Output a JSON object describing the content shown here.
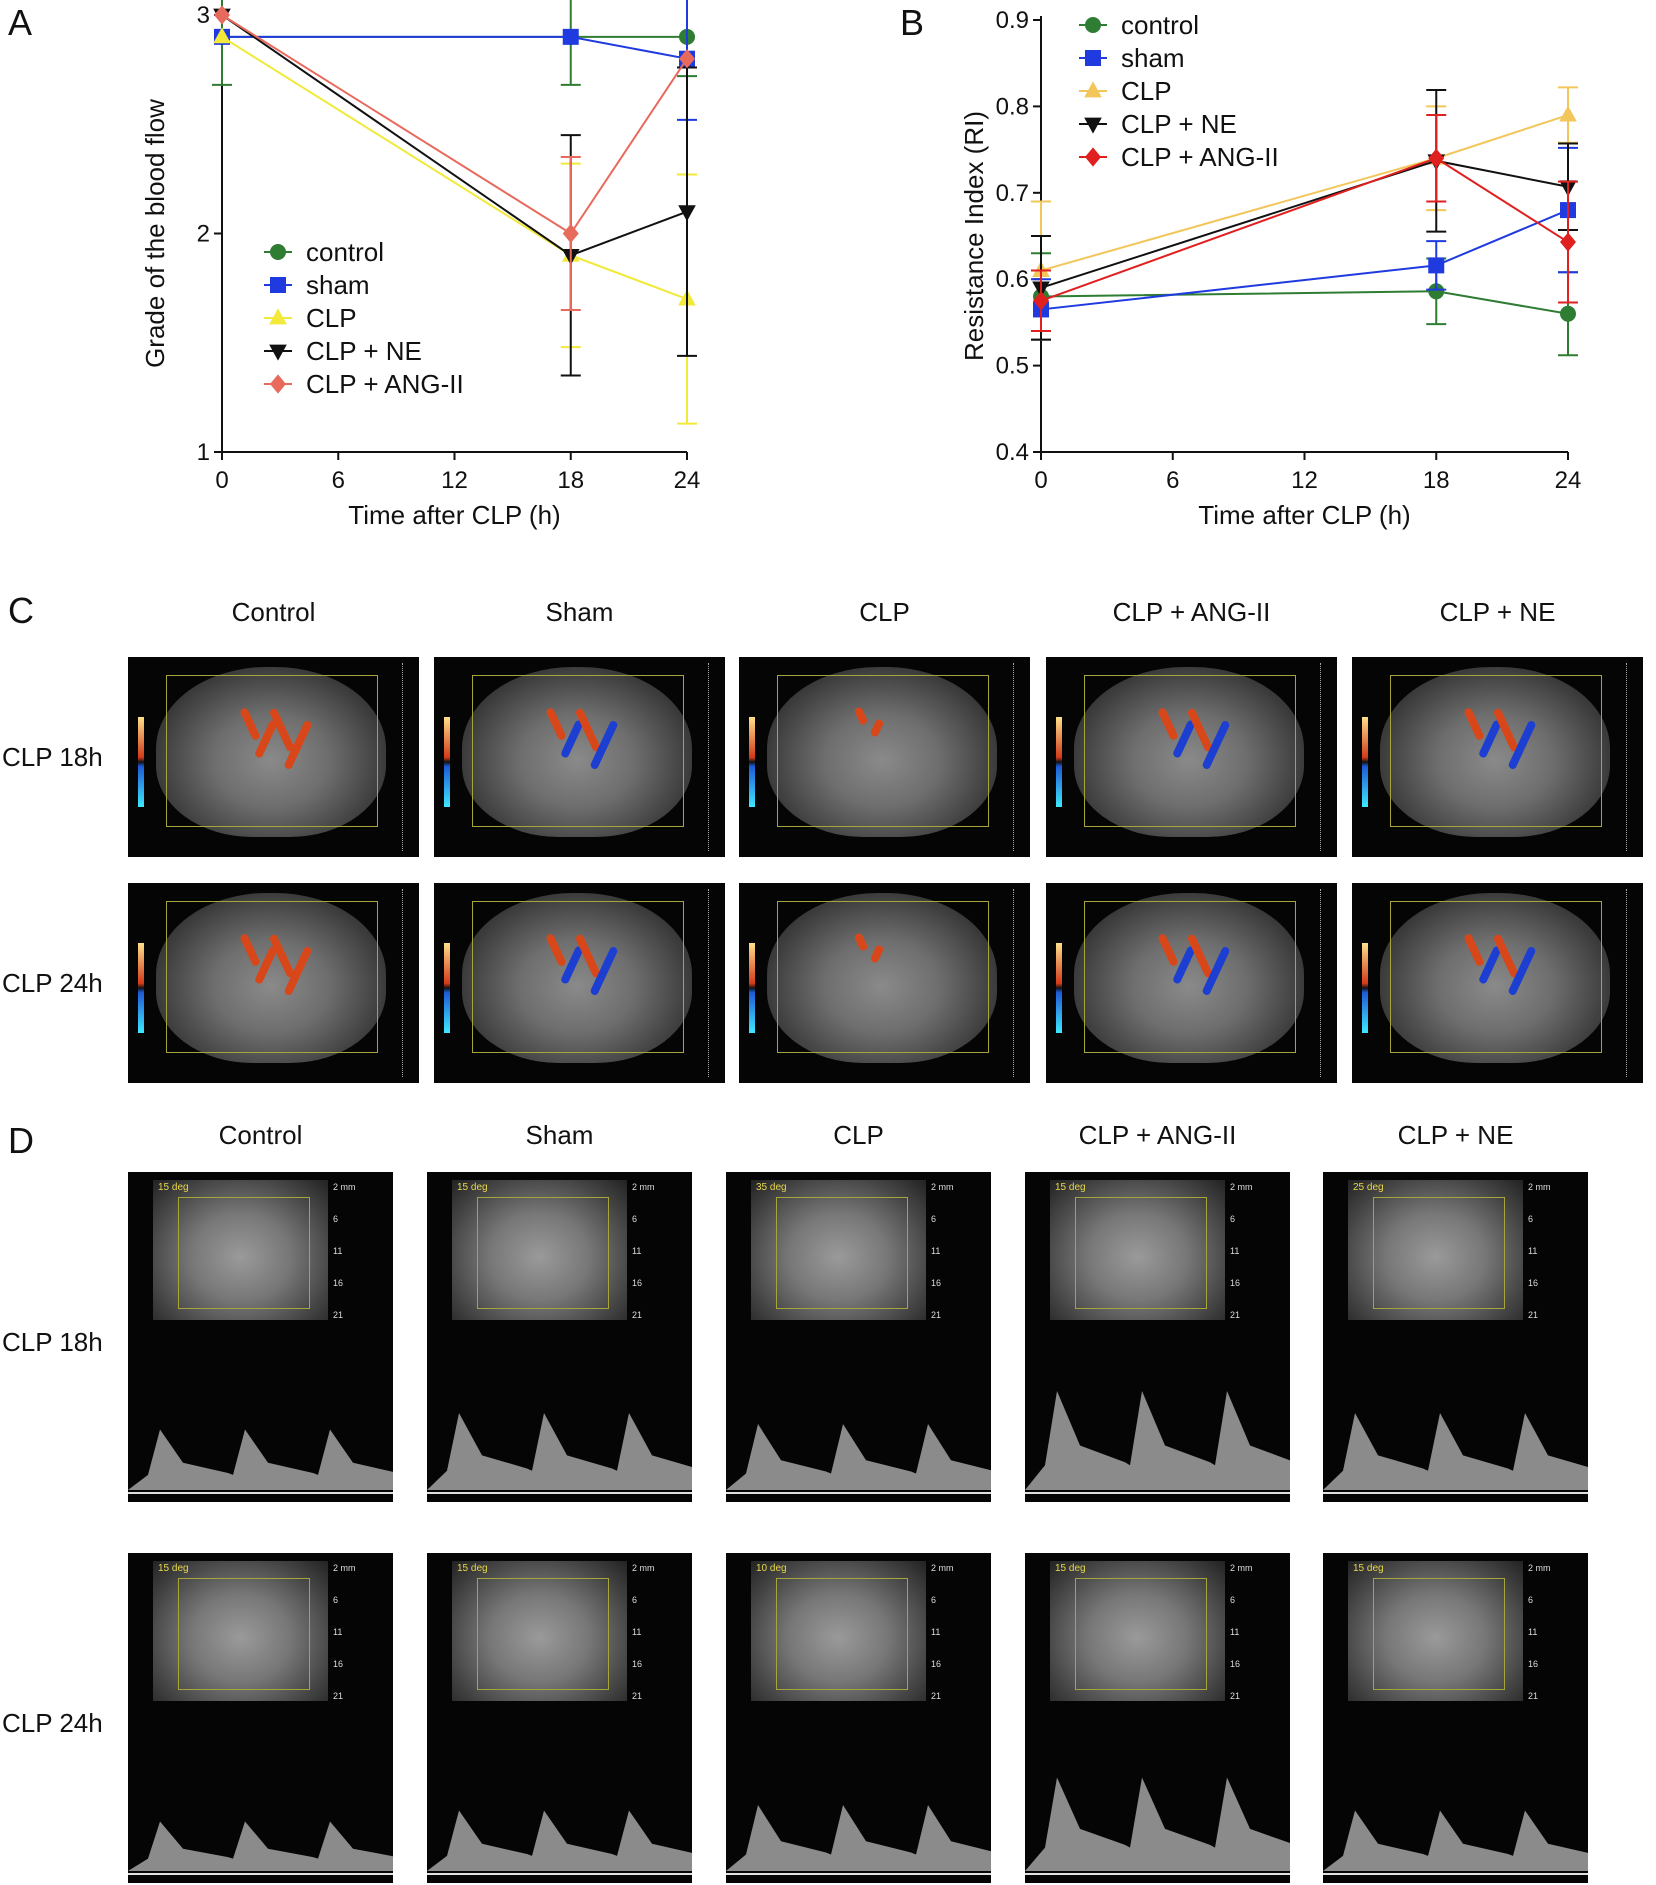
{
  "panels": {
    "A": "A",
    "B": "B",
    "C": "C",
    "D": "D"
  },
  "chart_data": [
    {
      "type": "line",
      "panel": "A",
      "xlabel": "Time after CLP (h)",
      "ylabel": "Grade of the blood flow",
      "xlim": [
        0,
        24
      ],
      "ylim": [
        1,
        3
      ],
      "xticks": [
        0,
        6,
        12,
        18,
        24
      ],
      "yticks": [
        1,
        2,
        3
      ],
      "x": [
        0,
        18,
        24
      ],
      "legend_position": "center-left",
      "series": [
        {
          "name": "control",
          "color": "#2e7d32",
          "marker": "circle",
          "values": [
            2.9,
            2.9,
            2.9
          ],
          "err": [
            0.22,
            0.22,
            0.18
          ]
        },
        {
          "name": "sham",
          "color": "#1f3be0",
          "marker": "square",
          "values": [
            2.9,
            2.9,
            2.8
          ],
          "err": [
            0.0,
            0.0,
            0.28
          ]
        },
        {
          "name": "CLP",
          "color": "#f2e93a",
          "marker": "triangle-up",
          "values": [
            2.9,
            1.9,
            1.7
          ],
          "err": [
            0.0,
            0.42,
            0.57
          ]
        },
        {
          "name": "CLP + NE",
          "color": "#111111",
          "marker": "triangle-down",
          "values": [
            3.0,
            1.9,
            2.1
          ],
          "err": [
            0.0,
            0.55,
            0.66
          ]
        },
        {
          "name": "CLP + ANG-II",
          "color": "#e86a5c",
          "marker": "diamond",
          "values": [
            3.0,
            2.0,
            2.8
          ],
          "err": [
            0.0,
            0.35,
            0.0
          ]
        }
      ]
    },
    {
      "type": "line",
      "panel": "B",
      "xlabel": "Time after CLP (h)",
      "ylabel": "Resistance Index (RI)",
      "xlim": [
        0,
        24
      ],
      "ylim": [
        0.4,
        0.9
      ],
      "xticks": [
        0,
        6,
        12,
        18,
        24
      ],
      "yticks": [
        0.4,
        0.5,
        0.6,
        0.7,
        0.8,
        0.9
      ],
      "x": [
        0,
        18,
        24
      ],
      "legend_position": "top-left",
      "series": [
        {
          "name": "control",
          "color": "#2e7d32",
          "marker": "circle",
          "values": [
            0.58,
            0.586,
            0.56
          ],
          "err": [
            0.05,
            0.038,
            0.048
          ]
        },
        {
          "name": "sham",
          "color": "#1f3be0",
          "marker": "square",
          "values": [
            0.565,
            0.616,
            0.68
          ],
          "err": [
            0.035,
            0.028,
            0.072
          ]
        },
        {
          "name": "CLP",
          "color": "#f2c65a",
          "marker": "triangle-up",
          "values": [
            0.61,
            0.74,
            0.79
          ],
          "err": [
            0.08,
            0.06,
            0.032
          ]
        },
        {
          "name": "CLP + NE",
          "color": "#111111",
          "marker": "triangle-down",
          "values": [
            0.59,
            0.737,
            0.707
          ],
          "err": [
            0.06,
            0.082,
            0.05
          ]
        },
        {
          "name": "CLP + ANG-II",
          "color": "#e01f1f",
          "marker": "diamond",
          "values": [
            0.575,
            0.74,
            0.643
          ],
          "err": [
            0.035,
            0.05,
            0.07
          ]
        }
      ]
    }
  ],
  "panelC": {
    "columns": [
      "Control",
      "Sham",
      "CLP",
      "CLP + ANG-II",
      "CLP + NE"
    ],
    "rows": [
      "CLP 18h",
      "CLP 24h"
    ]
  },
  "panelD": {
    "columns": [
      "Control",
      "Sham",
      "CLP",
      "CLP + ANG-II",
      "CLP + NE"
    ],
    "rows": [
      "CLP 18h",
      "CLP 24h"
    ],
    "row1_angles": [
      "15 deg",
      "15 deg",
      "35 deg",
      "15 deg",
      "25 deg"
    ],
    "row2_angles": [
      "15 deg",
      "15 deg",
      "10 deg",
      "15 deg",
      "15 deg"
    ],
    "depth_ticks": [
      "2 mm",
      "6",
      "11",
      "16",
      "21"
    ]
  }
}
